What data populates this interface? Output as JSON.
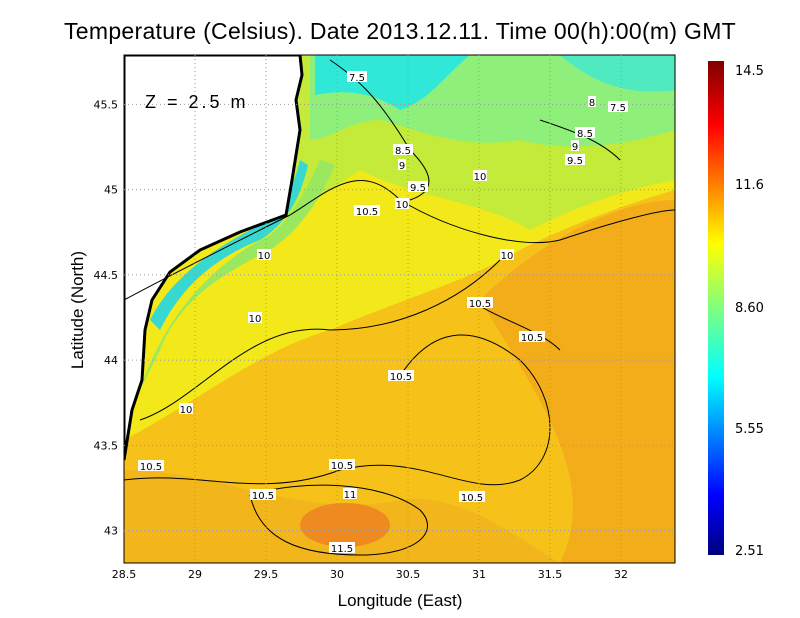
{
  "title": "Temperature (Celsius). Date 2013.12.11. Time 00(h):00(m)  GMT",
  "annotation": "Z = 2.5 m",
  "map": {
    "xlabel": "Longitude (East)",
    "ylabel": "Latitude (North)",
    "xlim": [
      28.5,
      32.38
    ],
    "ylim": [
      42.81,
      45.79
    ],
    "x_ticks": [
      "28.5",
      "29",
      "29.5",
      "30",
      "30.5",
      "31",
      "31.5",
      "32"
    ],
    "y_ticks": [
      "45.5",
      "45",
      "44.5",
      "44",
      "43.5",
      "43"
    ],
    "grid": true,
    "contour_labels": [
      "7.5",
      "8",
      "7.5",
      "8.5",
      "9",
      "8.5",
      "9",
      "9.5",
      "9.5",
      "10",
      "10.5",
      "10",
      "10",
      "10",
      "10.5",
      "10.5",
      "10",
      "10.5",
      "10",
      "10.5",
      "10.5",
      "10.5",
      "11",
      "10.5",
      "11.5"
    ]
  },
  "colorbar": {
    "ticks": [
      "14.5",
      "11.6",
      "8.60",
      "5.55",
      "2.51"
    ],
    "range": [
      2.51,
      14.5
    ],
    "colormap": "jet"
  }
}
